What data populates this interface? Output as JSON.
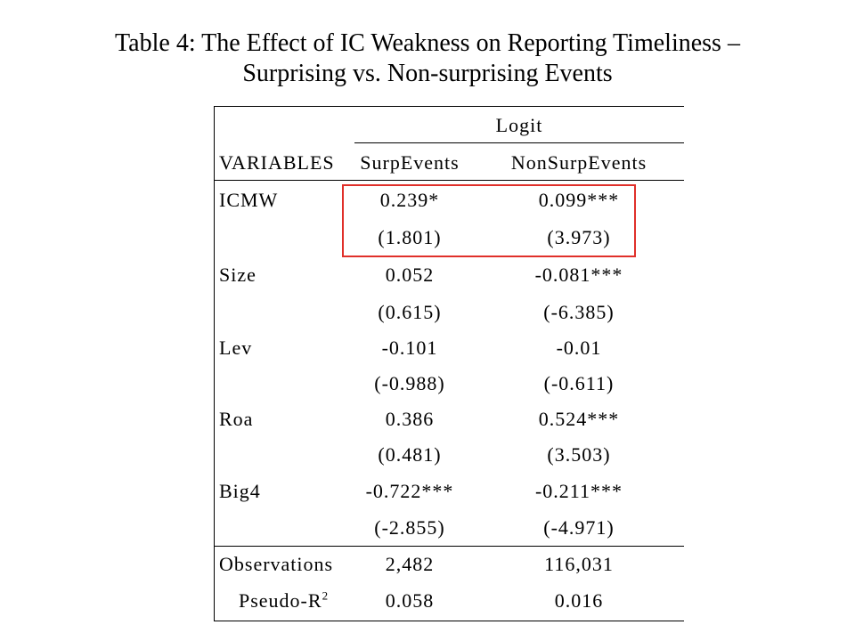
{
  "title": {
    "line1": "Table 4: The Effect of IC Weakness on Reporting Timeliness –",
    "line2": "Surprising vs. Non-surprising Events"
  },
  "table": {
    "group_header": "Logit",
    "var_header": "VARIABLES",
    "columns": [
      "SurpEvents",
      "NonSurpEvents"
    ],
    "rows": [
      {
        "name": "ICMW",
        "coef": [
          "0.239*",
          "0.099***"
        ],
        "t": [
          "(1.801)",
          "(3.973)"
        ]
      },
      {
        "name": "Size",
        "coef": [
          "0.052",
          "-0.081***"
        ],
        "t": [
          "(0.615)",
          "(-6.385)"
        ]
      },
      {
        "name": "Lev",
        "coef": [
          "-0.101",
          "-0.01"
        ],
        "t": [
          "(-0.988)",
          "(-0.611)"
        ]
      },
      {
        "name": "Roa",
        "coef": [
          "0.386",
          "0.524***"
        ],
        "t": [
          "(0.481)",
          "(3.503)"
        ]
      },
      {
        "name": "Big4",
        "coef": [
          "-0.722***",
          "-0.211***"
        ],
        "t": [
          "(-2.855)",
          "(-4.971)"
        ]
      }
    ],
    "footer": {
      "observations_label": "Observations",
      "observations": [
        "2,482",
        "116,031"
      ],
      "pseudo_r2_label": "Pseudo-R",
      "pseudo_r2_sup": "2",
      "pseudo_r2": [
        "0.058",
        "0.016"
      ]
    }
  },
  "highlight_color": "#e0302a"
}
